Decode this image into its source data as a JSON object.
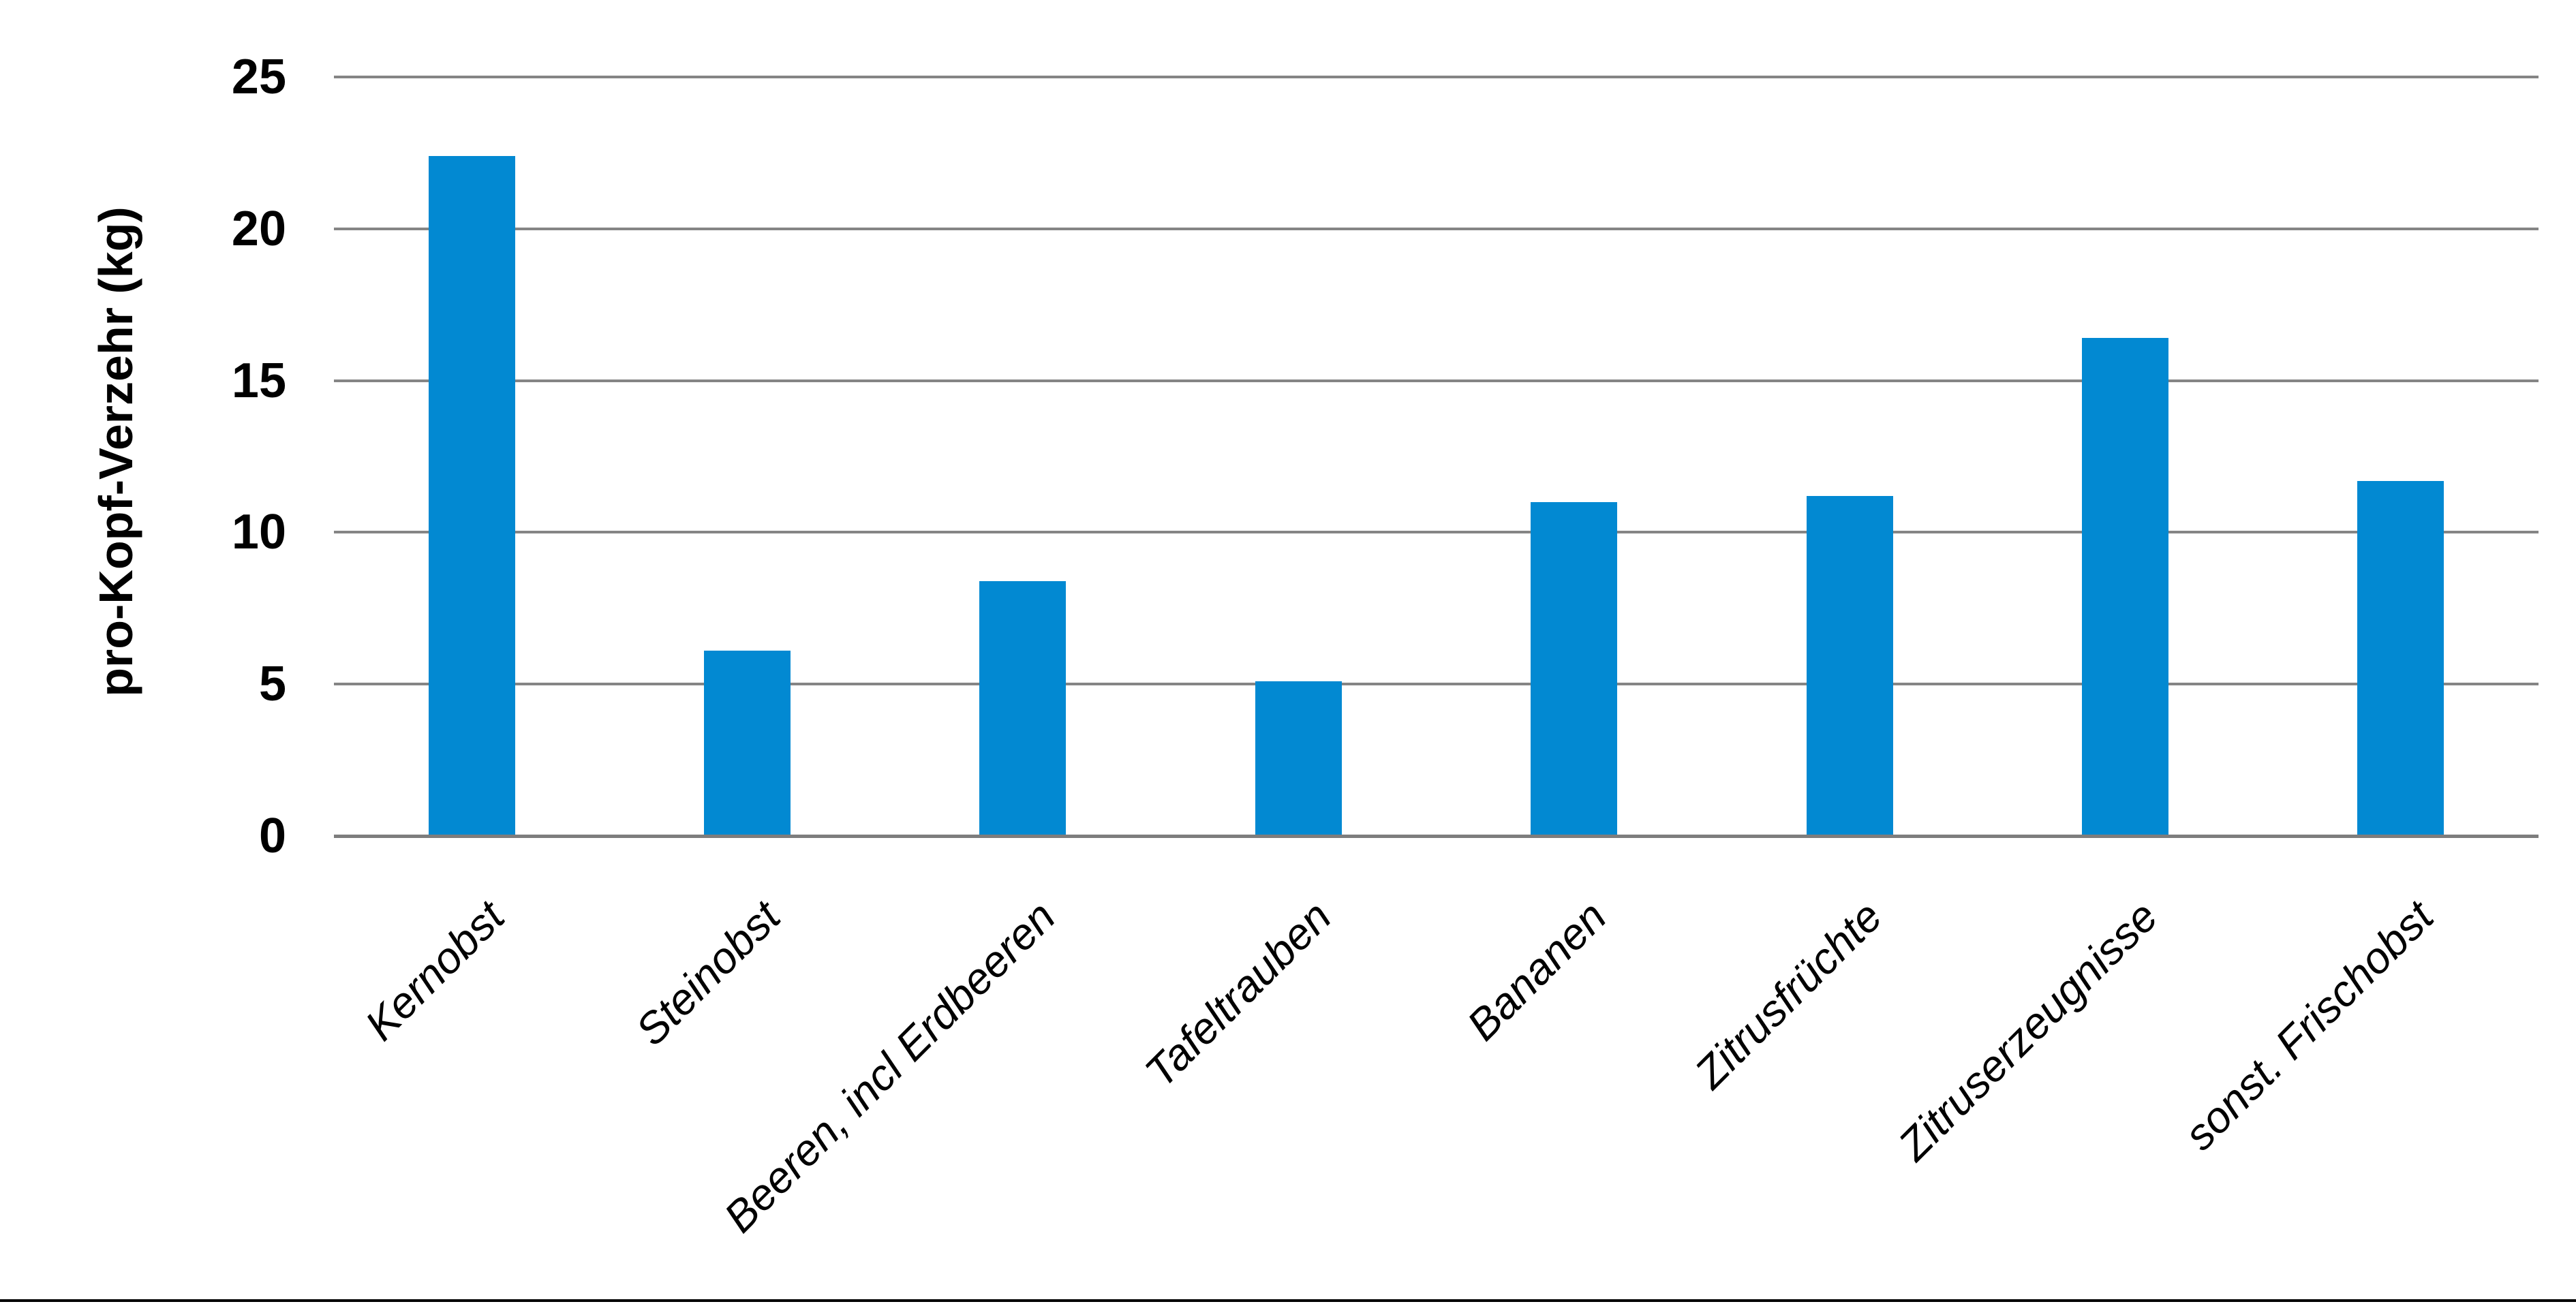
{
  "chart_data": {
    "type": "bar",
    "categories": [
      "Kernobst",
      "Steinobst",
      "Beeren, incl Erdbeeren",
      "Tafeltrauben",
      "Bananen",
      "Zitrusfrüchte",
      "Zitruserzeugnisse",
      "sonst. Frischobst"
    ],
    "values": [
      22.4,
      6.1,
      8.4,
      5.1,
      11.0,
      11.2,
      16.4,
      11.7
    ],
    "title": "",
    "xlabel": "",
    "ylabel": "pro-Kopf-Verzehr (kg)",
    "ylim": [
      0,
      25
    ],
    "ytick_step": 5,
    "ytick_labels": [
      "0",
      "5",
      "10",
      "15",
      "20",
      "25"
    ],
    "grid": true,
    "legend": false,
    "bar_color": "#0289D2",
    "gridline_color": "#858585",
    "axis_line_color": "#7D7D7D",
    "bottom_border_color": "#000000",
    "text_color": "#000000"
  }
}
